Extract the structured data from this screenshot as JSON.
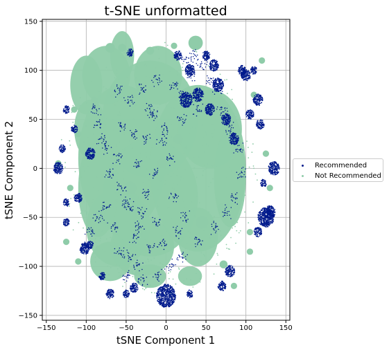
{
  "chart_data": {
    "type": "scatter",
    "title": "t-SNE unformatted",
    "xlabel": "tSNE Component 1",
    "ylabel": "tSNE Component 2",
    "xlim": [
      -155,
      155
    ],
    "ylim": [
      -155,
      152
    ],
    "xticks": [
      -150,
      -100,
      -50,
      0,
      50,
      100,
      150
    ],
    "yticks": [
      150,
      100,
      50,
      0,
      -50,
      -100,
      -150
    ],
    "grid": true,
    "legend_position": "outside-right",
    "series": [
      {
        "name": "Recommended",
        "color": "#001a8c",
        "points": [
          [
            -75,
            20
          ],
          [
            -60,
            10
          ],
          [
            -45,
            -40
          ],
          [
            -30,
            -45
          ],
          [
            -50,
            -35
          ],
          [
            -55,
            -20
          ],
          [
            -35,
            5
          ],
          [
            -25,
            30
          ],
          [
            -65,
            -60
          ],
          [
            -40,
            -70
          ],
          [
            -20,
            -80
          ],
          [
            -60,
            -85
          ],
          [
            -45,
            -90
          ],
          [
            -75,
            -40
          ],
          [
            -85,
            -50
          ],
          [
            -20,
            60
          ],
          [
            -30,
            80
          ],
          [
            -45,
            70
          ],
          [
            -10,
            90
          ],
          [
            10,
            85
          ],
          [
            20,
            75
          ],
          [
            30,
            95
          ],
          [
            45,
            105
          ],
          [
            55,
            90
          ],
          [
            65,
            80
          ],
          [
            35,
            115
          ],
          [
            25,
            110
          ],
          [
            40,
            60
          ],
          [
            70,
            60
          ],
          [
            80,
            40
          ],
          [
            90,
            20
          ],
          [
            95,
            -5
          ],
          [
            85,
            -30
          ],
          [
            75,
            -45
          ],
          [
            60,
            -60
          ],
          [
            40,
            -75
          ],
          [
            20,
            -90
          ],
          [
            5,
            -100
          ],
          [
            -10,
            -110
          ],
          [
            -30,
            -115
          ],
          [
            -5,
            30
          ],
          [
            5,
            10
          ],
          [
            -15,
            -5
          ],
          [
            -25,
            -25
          ],
          [
            -10,
            -55
          ],
          [
            -5,
            -75
          ],
          [
            -70,
            -5
          ],
          [
            -80,
            30
          ],
          [
            -90,
            60
          ],
          [
            -95,
            -65
          ],
          [
            -100,
            -80
          ],
          [
            -85,
            45
          ],
          [
            -55,
            45
          ],
          [
            -40,
            35
          ],
          [
            -15,
            55
          ],
          [
            0,
            40
          ],
          [
            10,
            -30
          ],
          [
            25,
            -50
          ],
          [
            15,
            -65
          ],
          [
            -60,
            80
          ],
          [
            -35,
            -100
          ],
          [
            -50,
            -110
          ],
          [
            20,
            50
          ],
          [
            -35,
            -60
          ]
        ],
        "clusters": [
          [
            0,
            -130,
            12
          ],
          [
            125,
            -50,
            10
          ],
          [
            130,
            -45,
            7
          ],
          [
            135,
            0,
            7
          ],
          [
            -135,
            0,
            6
          ],
          [
            -102,
            -82,
            6
          ],
          [
            80,
            -105,
            6
          ],
          [
            100,
            95,
            6
          ],
          [
            95,
            100,
            5
          ],
          [
            -95,
            15,
            6
          ],
          [
            -80,
            -110,
            4
          ],
          [
            25,
            70,
            8
          ],
          [
            40,
            75,
            7
          ],
          [
            60,
            105,
            6
          ],
          [
            65,
            85,
            7
          ],
          [
            115,
            70,
            6
          ],
          [
            118,
            45,
            5
          ],
          [
            -125,
            60,
            4
          ],
          [
            -110,
            -30,
            5
          ],
          [
            -70,
            -128,
            5
          ],
          [
            -95,
            -78,
            4
          ],
          [
            -125,
            -35,
            4
          ],
          [
            -125,
            -55,
            4
          ],
          [
            85,
            30,
            6
          ],
          [
            -115,
            40,
            4
          ],
          [
            105,
            55,
            5
          ],
          [
            70,
            -120,
            5
          ],
          [
            -40,
            -122,
            5
          ],
          [
            122,
            -15,
            4
          ],
          [
            115,
            -65,
            5
          ],
          [
            -50,
            -128,
            4
          ],
          [
            30,
            -128,
            4
          ],
          [
            55,
            60,
            6
          ],
          [
            30,
            100,
            6
          ],
          [
            110,
            100,
            4
          ],
          [
            15,
            115,
            5
          ],
          [
            -45,
            118,
            4
          ],
          [
            50,
            115,
            5
          ],
          [
            75,
            50,
            6
          ],
          [
            -130,
            20,
            4
          ]
        ]
      },
      {
        "name": "Not Recommended",
        "color": "#8fcca9",
        "blobs": [
          [
            -20,
            50,
            60,
            60
          ],
          [
            -55,
            10,
            55,
            75
          ],
          [
            -20,
            -30,
            60,
            60
          ],
          [
            -60,
            -60,
            40,
            40
          ],
          [
            -30,
            -80,
            40,
            30
          ],
          [
            40,
            0,
            60,
            85
          ],
          [
            55,
            40,
            40,
            40
          ],
          [
            80,
            -10,
            20,
            50
          ],
          [
            -75,
            95,
            30,
            30
          ],
          [
            -100,
            85,
            20,
            30
          ],
          [
            -55,
            115,
            15,
            25
          ],
          [
            -85,
            -20,
            25,
            50
          ],
          [
            -10,
            95,
            30,
            30
          ],
          [
            -95,
            40,
            20,
            30
          ],
          [
            -70,
            -95,
            25,
            20
          ],
          [
            40,
            -70,
            25,
            30
          ],
          [
            30,
            -110,
            15,
            10
          ],
          [
            -20,
            -110,
            20,
            12
          ]
        ],
        "islands": [
          [
            37,
            128,
            9
          ],
          [
            -70,
            123,
            6
          ],
          [
            -55,
            123,
            5
          ],
          [
            -20,
            120,
            5
          ],
          [
            10,
            125,
            4
          ],
          [
            -110,
            35,
            4
          ],
          [
            -135,
            5,
            4
          ],
          [
            -120,
            -20,
            4
          ],
          [
            -125,
            -75,
            4
          ],
          [
            -110,
            -95,
            4
          ],
          [
            72,
            -98,
            5
          ],
          [
            85,
            -120,
            4
          ],
          [
            105,
            -85,
            4
          ],
          [
            105,
            -65,
            4
          ],
          [
            125,
            15,
            4
          ],
          [
            130,
            -20,
            4
          ],
          [
            120,
            110,
            4
          ],
          [
            110,
            75,
            4
          ],
          [
            -90,
            70,
            4
          ],
          [
            -115,
            60,
            4
          ],
          [
            70,
            -40,
            5
          ],
          [
            -5,
            5,
            6
          ],
          [
            -45,
            -20,
            8
          ],
          [
            45,
            -55,
            8
          ],
          [
            15,
            30,
            6
          ]
        ]
      }
    ]
  }
}
